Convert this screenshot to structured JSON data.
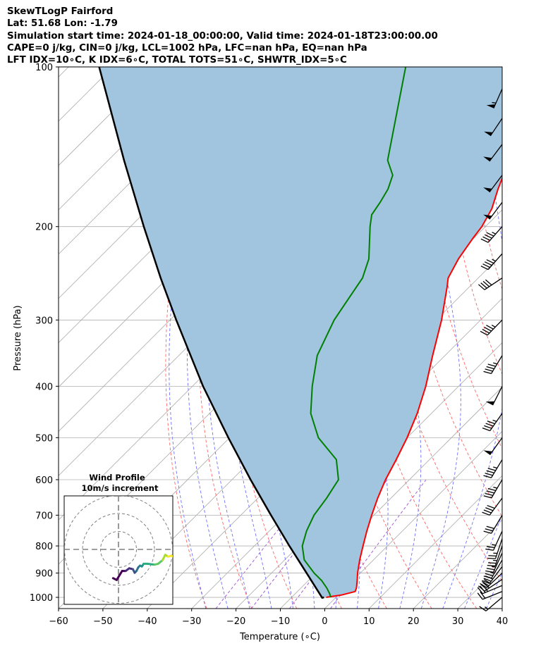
{
  "header": {
    "line1": "SkewTLogP Fairford",
    "line2": "Lat: 51.68   Lon: -1.79",
    "line3": "Simulation start time: 2024-01-18_00:00:00, Valid time: 2024-01-18T23:00:00.00",
    "line4": "CAPE=0 j/kg, CIN=0 j/kg, LCL=1002 hPa, LFC=nan hPa, EQ=nan hPa",
    "line5": "LFT IDX=10∘C, K IDX=6∘C, TOTAL TOTS=51∘C, SHWTR_IDX=5∘C"
  },
  "chart_data": {
    "type": "line",
    "title": "SkewTLogP Fairford",
    "xlabel": "Temperature (∘C)",
    "ylabel": "Pressure (hPa)",
    "xlim": [
      -60,
      40
    ],
    "ylim": [
      1050,
      100
    ],
    "x_ticks": [
      -60,
      -50,
      -40,
      -30,
      -20,
      -10,
      0,
      10,
      20,
      30,
      40
    ],
    "x_tick_labels": [
      "−60",
      "−50",
      "−40",
      "−30",
      "−20",
      "−10",
      "0",
      "10",
      "20",
      "30",
      "40"
    ],
    "y_ticks": [
      1000,
      900,
      800,
      700,
      600,
      500,
      400,
      300,
      200,
      100
    ],
    "y_tick_labels": [
      "1000",
      "900",
      "800",
      "700",
      "600",
      "500",
      "400",
      "300",
      "200",
      "100"
    ],
    "skew_deg": 45,
    "colors": {
      "temperature": "#ff0000",
      "dewpoint": "#008000",
      "parcel": "#000000",
      "cin_fill": "#a1c5df",
      "dry_adiabat": "#ff6666",
      "moist_adiabat": "#6f6fff",
      "mixing_ratio": "#9b4fd4",
      "isotherm": "#aaaaaa"
    },
    "series": [
      {
        "name": "temperature",
        "p": [
          1000,
          990,
          975,
          960,
          930,
          900,
          850,
          800,
          750,
          700,
          650,
          600,
          550,
          500,
          450,
          400,
          350,
          300,
          260,
          250,
          230,
          210,
          200,
          185,
          170,
          150,
          130,
          115,
          100
        ],
        "t": [
          -2.2,
          0.7,
          3.0,
          2.5,
          1.0,
          -0.6,
          -3.1,
          -5.5,
          -8.0,
          -10.5,
          -13.0,
          -15.4,
          -17.5,
          -20.0,
          -23.2,
          -27.4,
          -32.8,
          -38.8,
          -45.0,
          -46.8,
          -48.8,
          -50.2,
          -50.8,
          -52.6,
          -55.6,
          -59.6,
          -63.0,
          -65.0,
          -69.0
        ]
      },
      {
        "name": "dewpoint",
        "p": [
          1000,
          985,
          960,
          930,
          900,
          850,
          800,
          750,
          700,
          650,
          600,
          550,
          500,
          450,
          400,
          350,
          300,
          270,
          250,
          230,
          200,
          190,
          180,
          170,
          160,
          150,
          100
        ],
        "t": [
          -1.2,
          -2.2,
          -4.2,
          -7.0,
          -10.4,
          -15.6,
          -19.2,
          -21.6,
          -23.5,
          -24.5,
          -26.0,
          -31.0,
          -40.0,
          -47.2,
          -53.0,
          -58.8,
          -63.0,
          -64.8,
          -66.1,
          -69.0,
          -76.0,
          -78.3,
          -79.2,
          -80.4,
          -82.5,
          -87.0,
          -104.0
        ]
      },
      {
        "name": "parcel",
        "p": [
          1000,
          1002,
          900,
          800,
          700,
          600,
          500,
          400,
          300,
          250,
          200,
          150,
          100
        ],
        "t": [
          -2.7,
          -3.0,
          -12.1,
          -22.1,
          -33.2,
          -45.8,
          -60.3,
          -77.6,
          -98.6,
          -111.6,
          -127.0,
          -146.4,
          -173.1
        ]
      }
    ],
    "wind_barbs": {
      "p": [
        1000,
        975,
        950,
        925,
        900,
        875,
        850,
        825,
        800,
        775,
        750,
        700,
        650,
        600,
        550,
        500,
        450,
        400,
        350,
        300,
        250,
        225,
        200,
        180,
        160,
        140,
        125,
        110
      ],
      "u": [
        5.8,
        10.0,
        12.0,
        12.0,
        10.5,
        9.0,
        7.0,
        5.5,
        4.5,
        4.0,
        5.0,
        8.0,
        12.5,
        12.0,
        12.0,
        15.0,
        14.0,
        12.0,
        12.0,
        16.5,
        18.0,
        15.0,
        15.0,
        15.0,
        15.0,
        15.0,
        14.0,
        11.0
      ],
      "v": [
        4.9,
        4.0,
        5.0,
        8.0,
        10.0,
        12.0,
        12.0,
        12.0,
        13.0,
        12.0,
        11.0,
        13.5,
        17.0,
        20.5,
        20.0,
        21.0,
        20.0,
        24.0,
        20.0,
        17.0,
        12.0,
        17.0,
        17.0,
        20.0,
        20.0,
        20.0,
        21.0,
        25.0
      ]
    },
    "hodograph": {
      "title_line1": "Wind Profile",
      "title_line2": "10m/s increment",
      "ring_increment": 10,
      "rings": [
        10,
        20,
        30
      ],
      "u": [
        -3.0,
        -1.0,
        2.0,
        4.0,
        6.0,
        8.0,
        9.0,
        10.0,
        11.0,
        12.0,
        13.0,
        14.0,
        16.0,
        20.0,
        22.0,
        24.5,
        26.0,
        27.5,
        29.5,
        30.5
      ],
      "v": [
        -16.0,
        -17.0,
        -12.0,
        -12.0,
        -10.5,
        -11.0,
        -13.0,
        -12.0,
        -10.0,
        -9.0,
        -9.5,
        -8.0,
        -8.0,
        -8.5,
        -8.0,
        -6.0,
        -3.0,
        -4.0,
        -3.5,
        -4.0
      ]
    }
  }
}
